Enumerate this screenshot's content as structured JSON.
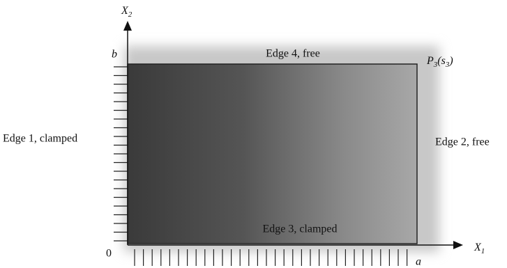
{
  "axes": {
    "vertical": {
      "base": "X",
      "sub": "2"
    },
    "horizontal": {
      "base": "X",
      "sub": "1"
    }
  },
  "points": {
    "origin": "0",
    "a": "a",
    "b": "b"
  },
  "corner_label": {
    "base": "P",
    "sub": "3",
    "open": "(s",
    "arg_sub": "3",
    "close": ")"
  },
  "edges": {
    "edge1": "Edge 1, clamped",
    "edge2": "Edge 2, free",
    "edge3": "Edge 3, clamped",
    "edge4": "Edge 4, free"
  }
}
